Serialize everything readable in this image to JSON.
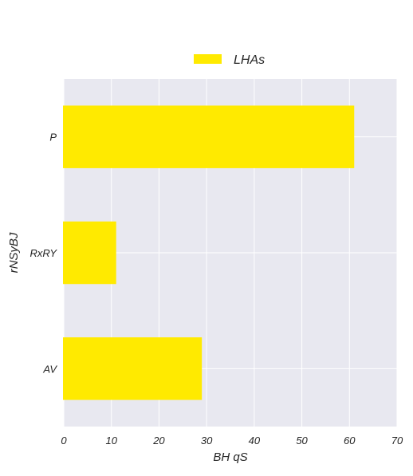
{
  "chart_data": {
    "type": "bar",
    "orientation": "horizontal",
    "categories": [
      "P",
      "RxRY",
      "AV"
    ],
    "series": [
      {
        "name": "LHAs",
        "values": [
          61,
          11,
          29
        ],
        "color": "#ffea00"
      }
    ],
    "xlabel": "BH qS",
    "ylabel": "rNSyBJ",
    "xlim": [
      0,
      70
    ],
    "xticks": [
      0,
      10,
      20,
      30,
      40,
      50,
      60,
      70
    ],
    "grid": true,
    "legend_position": "top-center",
    "plot_background": "#e8e8f0",
    "grid_color": "#ffffff"
  }
}
